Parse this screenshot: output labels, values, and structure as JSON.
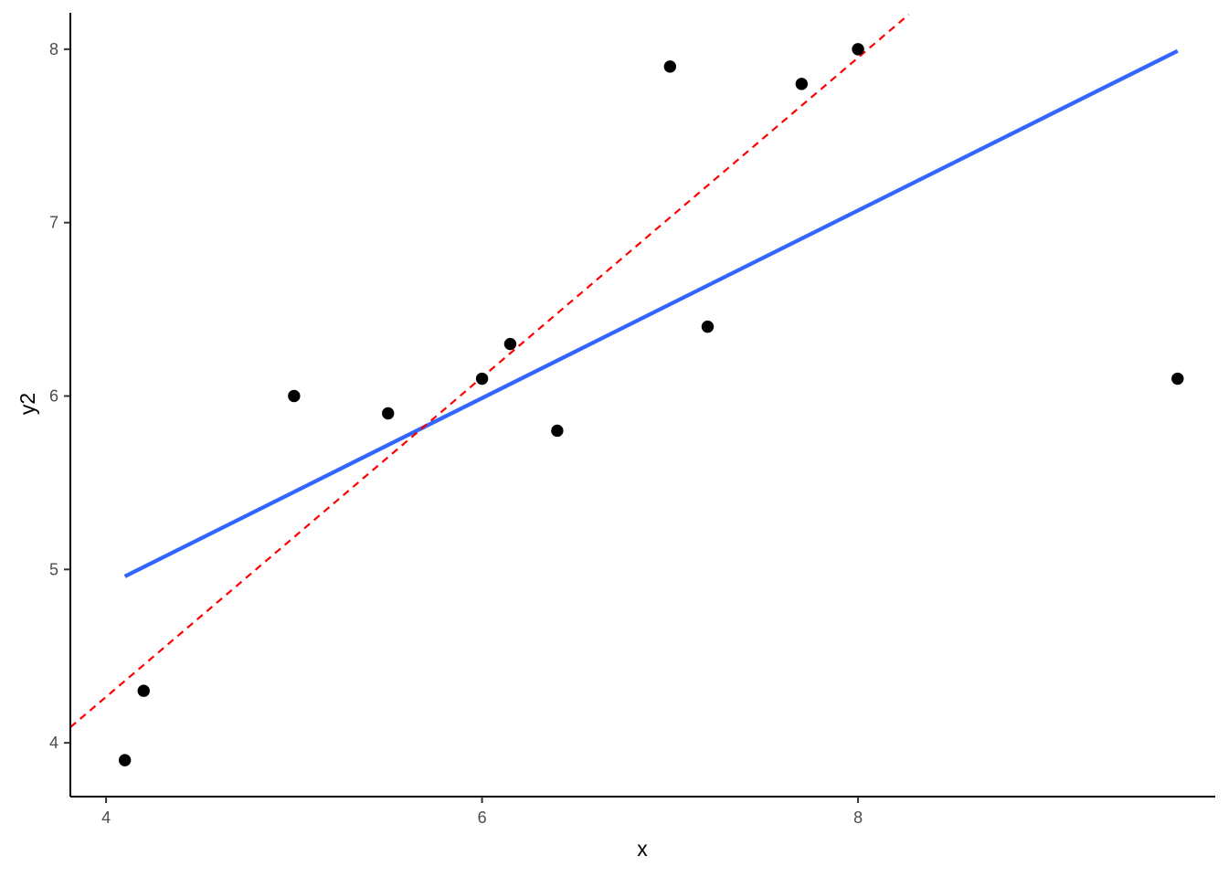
{
  "chart_data": {
    "type": "scatter",
    "title": "",
    "xlabel": "x",
    "ylabel": "y2",
    "xlim": [
      3.81,
      9.9
    ],
    "ylim": [
      3.69,
      8.21
    ],
    "x_ticks": [
      4,
      6,
      8
    ],
    "y_ticks": [
      4,
      5,
      6,
      7,
      8
    ],
    "x_tick_labels": [
      "4",
      "6",
      "8"
    ],
    "y_tick_labels": [
      "4",
      "5",
      "6",
      "7",
      "8"
    ],
    "grid": false,
    "legend": "none",
    "points": {
      "x": [
        4.1,
        4.2,
        5.0,
        5.5,
        6.0,
        6.15,
        6.4,
        7.0,
        7.2,
        7.7,
        8.0,
        9.7
      ],
      "y": [
        3.9,
        4.3,
        6.0,
        5.9,
        6.1,
        6.3,
        5.8,
        7.9,
        6.4,
        7.8,
        8.0,
        6.1
      ],
      "color": "#000000"
    },
    "lines": [
      {
        "kind": "fit",
        "x": [
          4.1,
          9.7
        ],
        "y": [
          4.96,
          7.99
        ],
        "color": "#3366ff",
        "style": "solid"
      },
      {
        "kind": "reference",
        "x": [
          3.81,
          8.27
        ],
        "y": [
          4.09,
          8.2
        ],
        "color": "#ff0000",
        "style": "dashed"
      }
    ]
  }
}
